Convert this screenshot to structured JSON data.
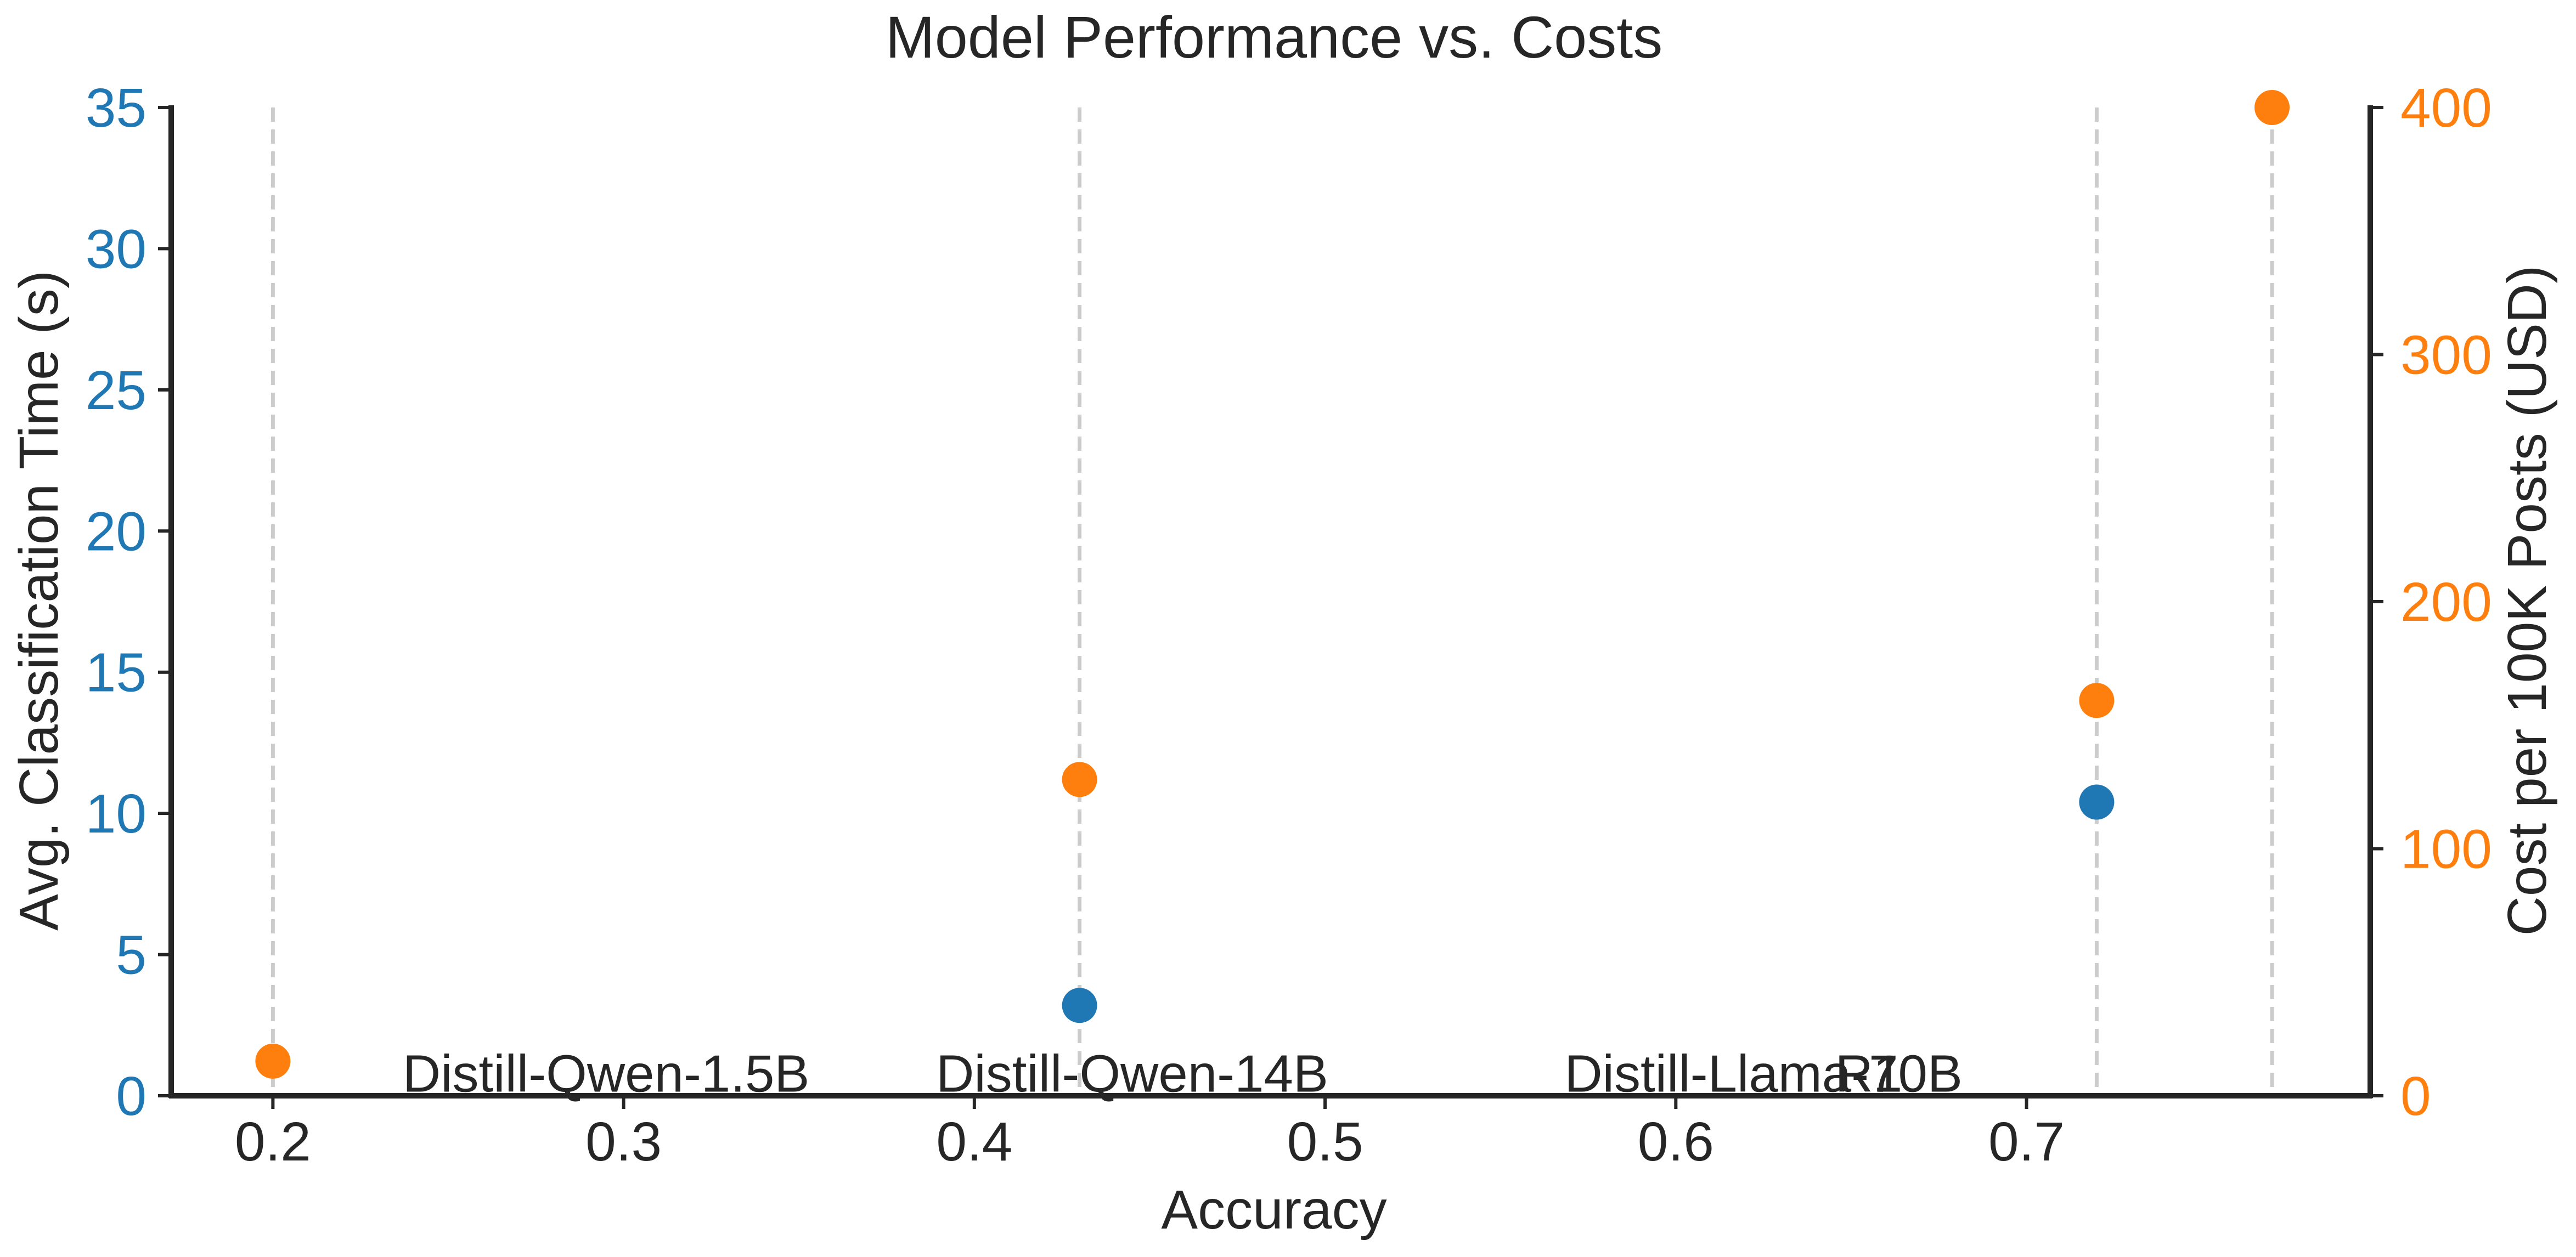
{
  "chart_data": {
    "type": "scatter",
    "title": "Model Performance vs. Costs",
    "xlabel": "Accuracy",
    "ylabel_left": "Avg. Classification Time (s)",
    "ylabel_right": "Cost per 100K Posts (USD)",
    "xlim": [
      0.171,
      0.798
    ],
    "ylim_left": [
      0,
      35
    ],
    "ylim_right": [
      0,
      400
    ],
    "x_ticks": [
      0.2,
      0.3,
      0.4,
      0.5,
      0.6,
      0.7
    ],
    "x_tick_labels": [
      "0.2",
      "0.3",
      "0.4",
      "0.5",
      "0.6",
      "0.7"
    ],
    "y_left_ticks": [
      0,
      5,
      10,
      15,
      20,
      25,
      30,
      35
    ],
    "y_left_tick_labels": [
      "0",
      "5",
      "10",
      "15",
      "20",
      "25",
      "30",
      "35"
    ],
    "y_right_ticks": [
      0,
      100,
      200,
      300,
      400
    ],
    "y_right_tick_labels": [
      "0",
      "100",
      "200",
      "300",
      "400"
    ],
    "grid": false,
    "vertical_reference_lines_x": [
      0.2,
      0.43,
      0.72,
      0.77
    ],
    "series": [
      {
        "axis": "left",
        "color": "#1f77b4",
        "points": [
          {
            "x": 0.43,
            "y": 3.2
          },
          {
            "x": 0.72,
            "y": 10.4
          }
        ]
      },
      {
        "axis": "right",
        "color": "#ff7f0e",
        "points": [
          {
            "x": 0.2,
            "y": 14
          },
          {
            "x": 0.43,
            "y": 128
          },
          {
            "x": 0.72,
            "y": 160
          },
          {
            "x": 0.77,
            "y": 400
          }
        ]
      }
    ],
    "annotations": [
      {
        "text": "Distill-Qwen-1.5B",
        "x": 0.295,
        "y": 0.15
      },
      {
        "text": "Distill-Qwen-14B",
        "x": 0.445,
        "y": 0.15
      },
      {
        "text": "Distill-Llama-70B",
        "x": 0.625,
        "y": 0.15
      },
      {
        "text": "R1",
        "x": 0.655,
        "y": 0.15
      }
    ],
    "colors": {
      "left_axis": "#1f77b4",
      "right_axis": "#ff7f0e",
      "reference_line": "#cccccc",
      "axis_line": "#262626",
      "text": "#262626"
    }
  }
}
